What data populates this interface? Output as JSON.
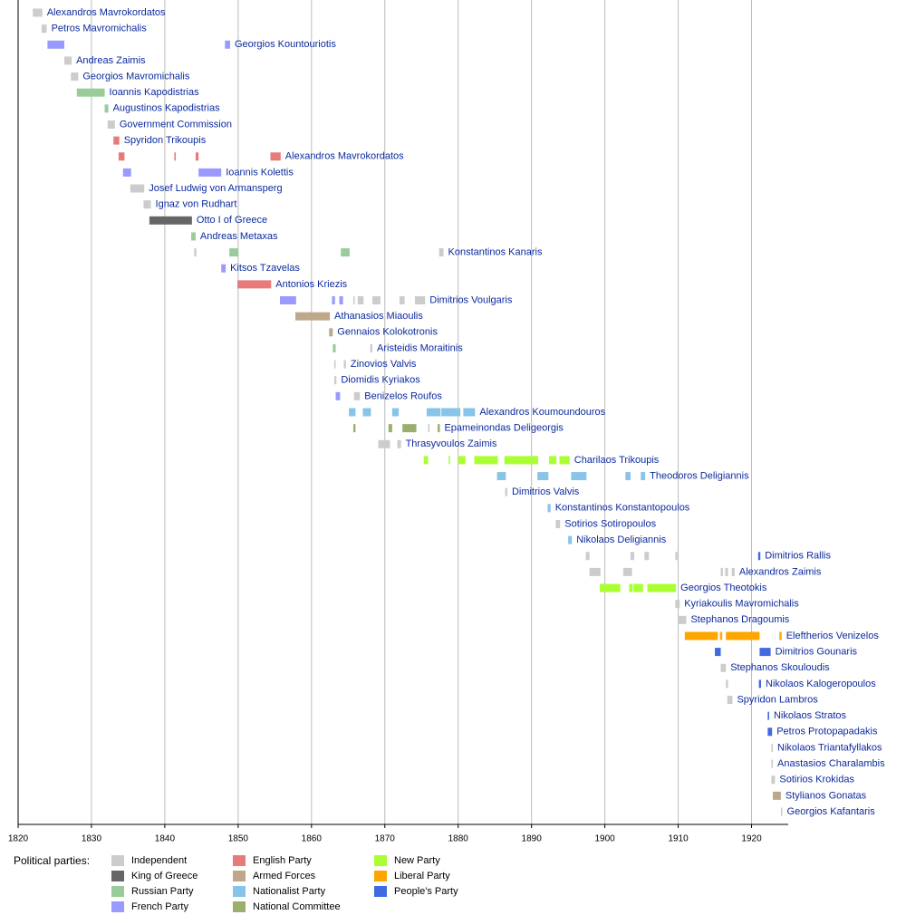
{
  "chart_data": {
    "type": "timeline",
    "xlim": [
      1820,
      1925
    ],
    "xticks": [
      1820,
      1830,
      1840,
      1850,
      1860,
      1870,
      1880,
      1890,
      1900,
      1910,
      1920
    ],
    "legend_title": "Political parties:",
    "parties": [
      {
        "name": "Independent",
        "color": "#cccccc"
      },
      {
        "name": "King of Greece",
        "color": "#666666"
      },
      {
        "name": "Russian Party",
        "color": "#99cc99"
      },
      {
        "name": "French Party",
        "color": "#9999ff"
      },
      {
        "name": "English Party",
        "color": "#e87a7a"
      },
      {
        "name": "Armed Forces",
        "color": "#bfa88a"
      },
      {
        "name": "Nationalist Party",
        "color": "#88c4e8"
      },
      {
        "name": "National Committee",
        "color": "#9aaf6e"
      },
      {
        "name": "New Party",
        "color": "#aaff33"
      },
      {
        "name": "Liberal Party",
        "color": "#ffa500"
      },
      {
        "name": "People's Party",
        "color": "#4169e1"
      }
    ],
    "rows": [
      {
        "name": "Alexandros Mavrokordatos",
        "segments": [
          {
            "party": "Independent",
            "start": 1822.0,
            "end": 1823.3
          }
        ]
      },
      {
        "name": "Petros Mavromichalis",
        "segments": [
          {
            "party": "Independent",
            "start": 1823.2,
            "end": 1823.9
          }
        ]
      },
      {
        "name": "Georgios Kountouriotis",
        "segments": [
          {
            "party": "French Party",
            "start": 1824.0,
            "end": 1826.3
          },
          {
            "party": "French Party",
            "start": 1848.2,
            "end": 1848.9
          }
        ]
      },
      {
        "name": "Andreas Zaimis",
        "segments": [
          {
            "party": "Independent",
            "start": 1826.3,
            "end": 1827.3
          }
        ]
      },
      {
        "name": "Georgios Mavromichalis",
        "segments": [
          {
            "party": "Independent",
            "start": 1827.2,
            "end": 1828.2
          }
        ]
      },
      {
        "name": "Ioannis Kapodistrias",
        "segments": [
          {
            "party": "Russian Party",
            "start": 1828.0,
            "end": 1831.8
          }
        ]
      },
      {
        "name": "Augustinos Kapodistrias",
        "segments": [
          {
            "party": "Russian Party",
            "start": 1831.8,
            "end": 1832.3
          }
        ]
      },
      {
        "name": "Government Commission",
        "segments": [
          {
            "party": "Independent",
            "start": 1832.2,
            "end": 1833.2
          }
        ]
      },
      {
        "name": "Spyridon Trikoupis",
        "segments": [
          {
            "party": "English Party",
            "start": 1833.0,
            "end": 1833.8
          }
        ]
      },
      {
        "name": "Alexandros Mavrokordatos",
        "segments": [
          {
            "party": "English Party",
            "start": 1833.7,
            "end": 1834.5
          },
          {
            "party": "English Party",
            "start": 1841.3,
            "end": 1841.5
          },
          {
            "party": "English Party",
            "start": 1844.2,
            "end": 1844.6
          },
          {
            "party": "English Party",
            "start": 1854.4,
            "end": 1855.8
          }
        ]
      },
      {
        "name": "Ioannis Kolettis",
        "segments": [
          {
            "party": "French Party",
            "start": 1834.3,
            "end": 1835.4
          },
          {
            "party": "French Party",
            "start": 1844.6,
            "end": 1847.7
          }
        ]
      },
      {
        "name": "Josef Ludwig von Armansperg",
        "segments": [
          {
            "party": "Independent",
            "start": 1835.3,
            "end": 1837.2
          }
        ]
      },
      {
        "name": "Ignaz von Rudhart",
        "segments": [
          {
            "party": "Independent",
            "start": 1837.1,
            "end": 1838.1
          }
        ]
      },
      {
        "name": "Otto I of Greece",
        "segments": [
          {
            "party": "King of Greece",
            "start": 1837.9,
            "end": 1843.7
          }
        ]
      },
      {
        "name": "Andreas Metaxas",
        "segments": [
          {
            "party": "Russian Party",
            "start": 1843.6,
            "end": 1844.2
          }
        ]
      },
      {
        "name": "Konstantinos Kanaris",
        "segments": [
          {
            "party": "Independent",
            "start": 1844.0,
            "end": 1844.3
          },
          {
            "party": "Russian Party",
            "start": 1848.8,
            "end": 1850.0
          },
          {
            "party": "Russian Party",
            "start": 1864.0,
            "end": 1865.2
          },
          {
            "party": "Independent",
            "start": 1877.4,
            "end": 1878.0
          }
        ]
      },
      {
        "name": "Kitsos Tzavelas",
        "segments": [
          {
            "party": "French Party",
            "start": 1847.7,
            "end": 1848.3
          }
        ]
      },
      {
        "name": "Antonios Kriezis",
        "segments": [
          {
            "party": "English Party",
            "start": 1849.9,
            "end": 1854.5
          }
        ]
      },
      {
        "name": "Dimitrios Voulgaris",
        "segments": [
          {
            "party": "French Party",
            "start": 1855.7,
            "end": 1857.9
          },
          {
            "party": "French Party",
            "start": 1862.8,
            "end": 1863.2
          },
          {
            "party": "French Party",
            "start": 1863.8,
            "end": 1864.3
          },
          {
            "party": "Independent",
            "start": 1865.7,
            "end": 1865.9
          },
          {
            "party": "Independent",
            "start": 1866.3,
            "end": 1867.1
          },
          {
            "party": "Independent",
            "start": 1868.3,
            "end": 1869.4
          },
          {
            "party": "Independent",
            "start": 1872.0,
            "end": 1872.7
          },
          {
            "party": "Independent",
            "start": 1874.1,
            "end": 1875.5
          }
        ]
      },
      {
        "name": "Athanasios Miaoulis",
        "segments": [
          {
            "party": "Armed Forces",
            "start": 1857.8,
            "end": 1862.5
          }
        ]
      },
      {
        "name": "Gennaios Kolokotronis",
        "segments": [
          {
            "party": "Armed Forces",
            "start": 1862.4,
            "end": 1862.9
          }
        ]
      },
      {
        "name": "Aristeidis Moraitinis",
        "segments": [
          {
            "party": "Russian Party",
            "start": 1862.9,
            "end": 1863.3
          },
          {
            "party": "Independent",
            "start": 1868.0,
            "end": 1868.3
          }
        ]
      },
      {
        "name": "Zinovios Valvis",
        "segments": [
          {
            "party": "Independent",
            "start": 1863.1,
            "end": 1863.3
          },
          {
            "party": "Independent",
            "start": 1864.4,
            "end": 1864.7
          }
        ]
      },
      {
        "name": "Diomidis Kyriakos",
        "segments": [
          {
            "party": "Independent",
            "start": 1863.1,
            "end": 1863.4
          }
        ]
      },
      {
        "name": "Benizelos Roufos",
        "segments": [
          {
            "party": "French Party",
            "start": 1863.3,
            "end": 1863.9
          },
          {
            "party": "Independent",
            "start": 1865.8,
            "end": 1866.6
          }
        ]
      },
      {
        "name": "Alexandros Koumoundouros",
        "segments": [
          {
            "party": "Nationalist Party",
            "start": 1865.1,
            "end": 1866.0
          },
          {
            "party": "Nationalist Party",
            "start": 1867.0,
            "end": 1868.1
          },
          {
            "party": "Nationalist Party",
            "start": 1871.0,
            "end": 1871.9
          },
          {
            "party": "Nationalist Party",
            "start": 1875.7,
            "end": 1877.6
          },
          {
            "party": "Nationalist Party",
            "start": 1877.7,
            "end": 1880.3
          },
          {
            "party": "Nationalist Party",
            "start": 1880.7,
            "end": 1882.3
          }
        ]
      },
      {
        "name": "Epameinondas Deligeorgis",
        "segments": [
          {
            "party": "National Committee",
            "start": 1865.7,
            "end": 1866.0
          },
          {
            "party": "National Committee",
            "start": 1870.5,
            "end": 1871.0
          },
          {
            "party": "National Committee",
            "start": 1872.4,
            "end": 1874.3
          },
          {
            "party": "Independent",
            "start": 1875.9,
            "end": 1876.1
          },
          {
            "party": "National Committee",
            "start": 1877.2,
            "end": 1877.5
          }
        ]
      },
      {
        "name": "Thrasyvoulos Zaimis",
        "segments": [
          {
            "party": "Independent",
            "start": 1869.1,
            "end": 1870.7
          },
          {
            "party": "Independent",
            "start": 1871.7,
            "end": 1872.2
          }
        ]
      },
      {
        "name": "Charilaos Trikoupis",
        "segments": [
          {
            "party": "New Party",
            "start": 1875.3,
            "end": 1875.9
          },
          {
            "party": "New Party",
            "start": 1878.7,
            "end": 1878.9
          },
          {
            "party": "New Party",
            "start": 1880.0,
            "end": 1881.0
          },
          {
            "party": "New Party",
            "start": 1882.2,
            "end": 1885.4
          },
          {
            "party": "New Party",
            "start": 1886.3,
            "end": 1890.9
          },
          {
            "party": "New Party",
            "start": 1892.4,
            "end": 1893.4
          },
          {
            "party": "New Party",
            "start": 1893.8,
            "end": 1895.2
          }
        ]
      },
      {
        "name": "Theodoros Deligiannis",
        "segments": [
          {
            "party": "Nationalist Party",
            "start": 1885.3,
            "end": 1886.5
          },
          {
            "party": "Nationalist Party",
            "start": 1890.8,
            "end": 1892.3
          },
          {
            "party": "Nationalist Party",
            "start": 1895.4,
            "end": 1897.5
          },
          {
            "party": "Nationalist Party",
            "start": 1902.8,
            "end": 1903.5
          },
          {
            "party": "Nationalist Party",
            "start": 1904.9,
            "end": 1905.5
          }
        ]
      },
      {
        "name": "Dimitrios Valvis",
        "segments": [
          {
            "party": "Independent",
            "start": 1886.4,
            "end": 1886.7
          }
        ]
      },
      {
        "name": "Konstantinos Konstantopoulos",
        "segments": [
          {
            "party": "Nationalist Party",
            "start": 1892.2,
            "end": 1892.6
          }
        ]
      },
      {
        "name": "Sotirios Sotiropoulos",
        "segments": [
          {
            "party": "Independent",
            "start": 1893.3,
            "end": 1893.9
          }
        ]
      },
      {
        "name": "Nikolaos Deligiannis",
        "segments": [
          {
            "party": "Nationalist Party",
            "start": 1895.0,
            "end": 1895.5
          }
        ]
      },
      {
        "name": "Dimitrios Rallis",
        "segments": [
          {
            "party": "Independent",
            "start": 1897.4,
            "end": 1897.9
          },
          {
            "party": "Independent",
            "start": 1903.5,
            "end": 1904.0
          },
          {
            "party": "Independent",
            "start": 1905.4,
            "end": 1906.0
          },
          {
            "party": "Independent",
            "start": 1909.6,
            "end": 1909.9
          },
          {
            "party": "People's Party",
            "start": 1920.9,
            "end": 1921.2
          }
        ]
      },
      {
        "name": "Alexandros Zaimis",
        "segments": [
          {
            "party": "Independent",
            "start": 1897.9,
            "end": 1899.4
          },
          {
            "party": "Independent",
            "start": 1902.5,
            "end": 1903.7
          },
          {
            "party": "Independent",
            "start": 1915.8,
            "end": 1916.1
          },
          {
            "party": "Independent",
            "start": 1916.4,
            "end": 1916.8
          },
          {
            "party": "Independent",
            "start": 1917.3,
            "end": 1917.7
          }
        ]
      },
      {
        "name": "Georgios Theotokis",
        "segments": [
          {
            "party": "New Party",
            "start": 1899.3,
            "end": 1902.1
          },
          {
            "party": "New Party",
            "start": 1903.3,
            "end": 1903.8
          },
          {
            "party": "New Party",
            "start": 1903.9,
            "end": 1905.2
          },
          {
            "party": "New Party",
            "start": 1905.8,
            "end": 1909.7
          }
        ]
      },
      {
        "name": "Kyriakoulis Mavromichalis",
        "segments": [
          {
            "party": "Independent",
            "start": 1909.6,
            "end": 1910.2
          }
        ]
      },
      {
        "name": "Stephanos Dragoumis",
        "segments": [
          {
            "party": "Independent",
            "start": 1910.0,
            "end": 1911.1
          }
        ]
      },
      {
        "name": "Eleftherios Venizelos",
        "segments": [
          {
            "party": "Liberal Party",
            "start": 1910.9,
            "end": 1915.4
          },
          {
            "party": "Liberal Party",
            "start": 1915.7,
            "end": 1916.0
          },
          {
            "party": "Liberal Party",
            "start": 1916.5,
            "end": 1921.1
          },
          {
            "party": "Liberal Party",
            "start": 1923.8,
            "end": 1924.1
          }
        ]
      },
      {
        "name": "Dimitrios Gounaris",
        "segments": [
          {
            "party": "People's Party",
            "start": 1915.0,
            "end": 1915.8
          },
          {
            "party": "People's Party",
            "start": 1921.1,
            "end": 1922.6
          }
        ]
      },
      {
        "name": "Stephanos Skouloudis",
        "segments": [
          {
            "party": "Independent",
            "start": 1915.8,
            "end": 1916.5
          }
        ]
      },
      {
        "name": "Nikolaos Kalogeropoulos",
        "segments": [
          {
            "party": "Independent",
            "start": 1916.5,
            "end": 1916.8
          },
          {
            "party": "People's Party",
            "start": 1921.0,
            "end": 1921.3
          }
        ]
      },
      {
        "name": "Spyridon Lambros",
        "segments": [
          {
            "party": "Independent",
            "start": 1916.7,
            "end": 1917.4
          }
        ]
      },
      {
        "name": "Nikolaos Stratos",
        "segments": [
          {
            "party": "People's Party",
            "start": 1922.2,
            "end": 1922.4
          }
        ]
      },
      {
        "name": "Petros Protopapadakis",
        "segments": [
          {
            "party": "People's Party",
            "start": 1922.2,
            "end": 1922.8
          }
        ]
      },
      {
        "name": "Nikolaos Triantafyllakos",
        "segments": [
          {
            "party": "Independent",
            "start": 1922.7,
            "end": 1922.9
          }
        ]
      },
      {
        "name": "Anastasios Charalambis",
        "segments": [
          {
            "party": "Independent",
            "start": 1922.7,
            "end": 1922.9
          }
        ]
      },
      {
        "name": "Sotirios Krokidas",
        "segments": [
          {
            "party": "Independent",
            "start": 1922.7,
            "end": 1923.2
          }
        ]
      },
      {
        "name": "Stylianos Gonatas",
        "segments": [
          {
            "party": "Armed Forces",
            "start": 1922.9,
            "end": 1924.0
          }
        ]
      },
      {
        "name": "Georgios Kafantaris",
        "segments": [
          {
            "party": "Independent",
            "start": 1924.0,
            "end": 1924.2
          }
        ]
      }
    ]
  }
}
